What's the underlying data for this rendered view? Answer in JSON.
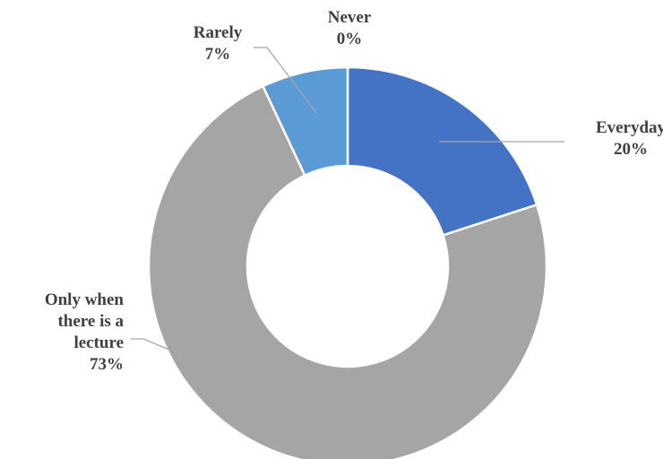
{
  "chart_data": {
    "type": "pie",
    "variant": "doughnut",
    "title": "",
    "categories": [
      "Everyday",
      "Only when there is a lecture",
      "Rarely",
      "Never"
    ],
    "values": [
      20,
      73,
      7,
      0
    ],
    "unit": "%",
    "legend": "none",
    "colors": [
      "#4472c4",
      "#a5a5a5",
      "#5b9bd5",
      "#ffc000"
    ],
    "labels": [
      {
        "lines": [
          "Everyday",
          "20%"
        ]
      },
      {
        "lines": [
          "Only when",
          "there is a",
          "lecture",
          "73%"
        ]
      },
      {
        "lines": [
          "Rarely",
          "7%"
        ]
      },
      {
        "lines": [
          "Never",
          "0%"
        ]
      }
    ]
  }
}
